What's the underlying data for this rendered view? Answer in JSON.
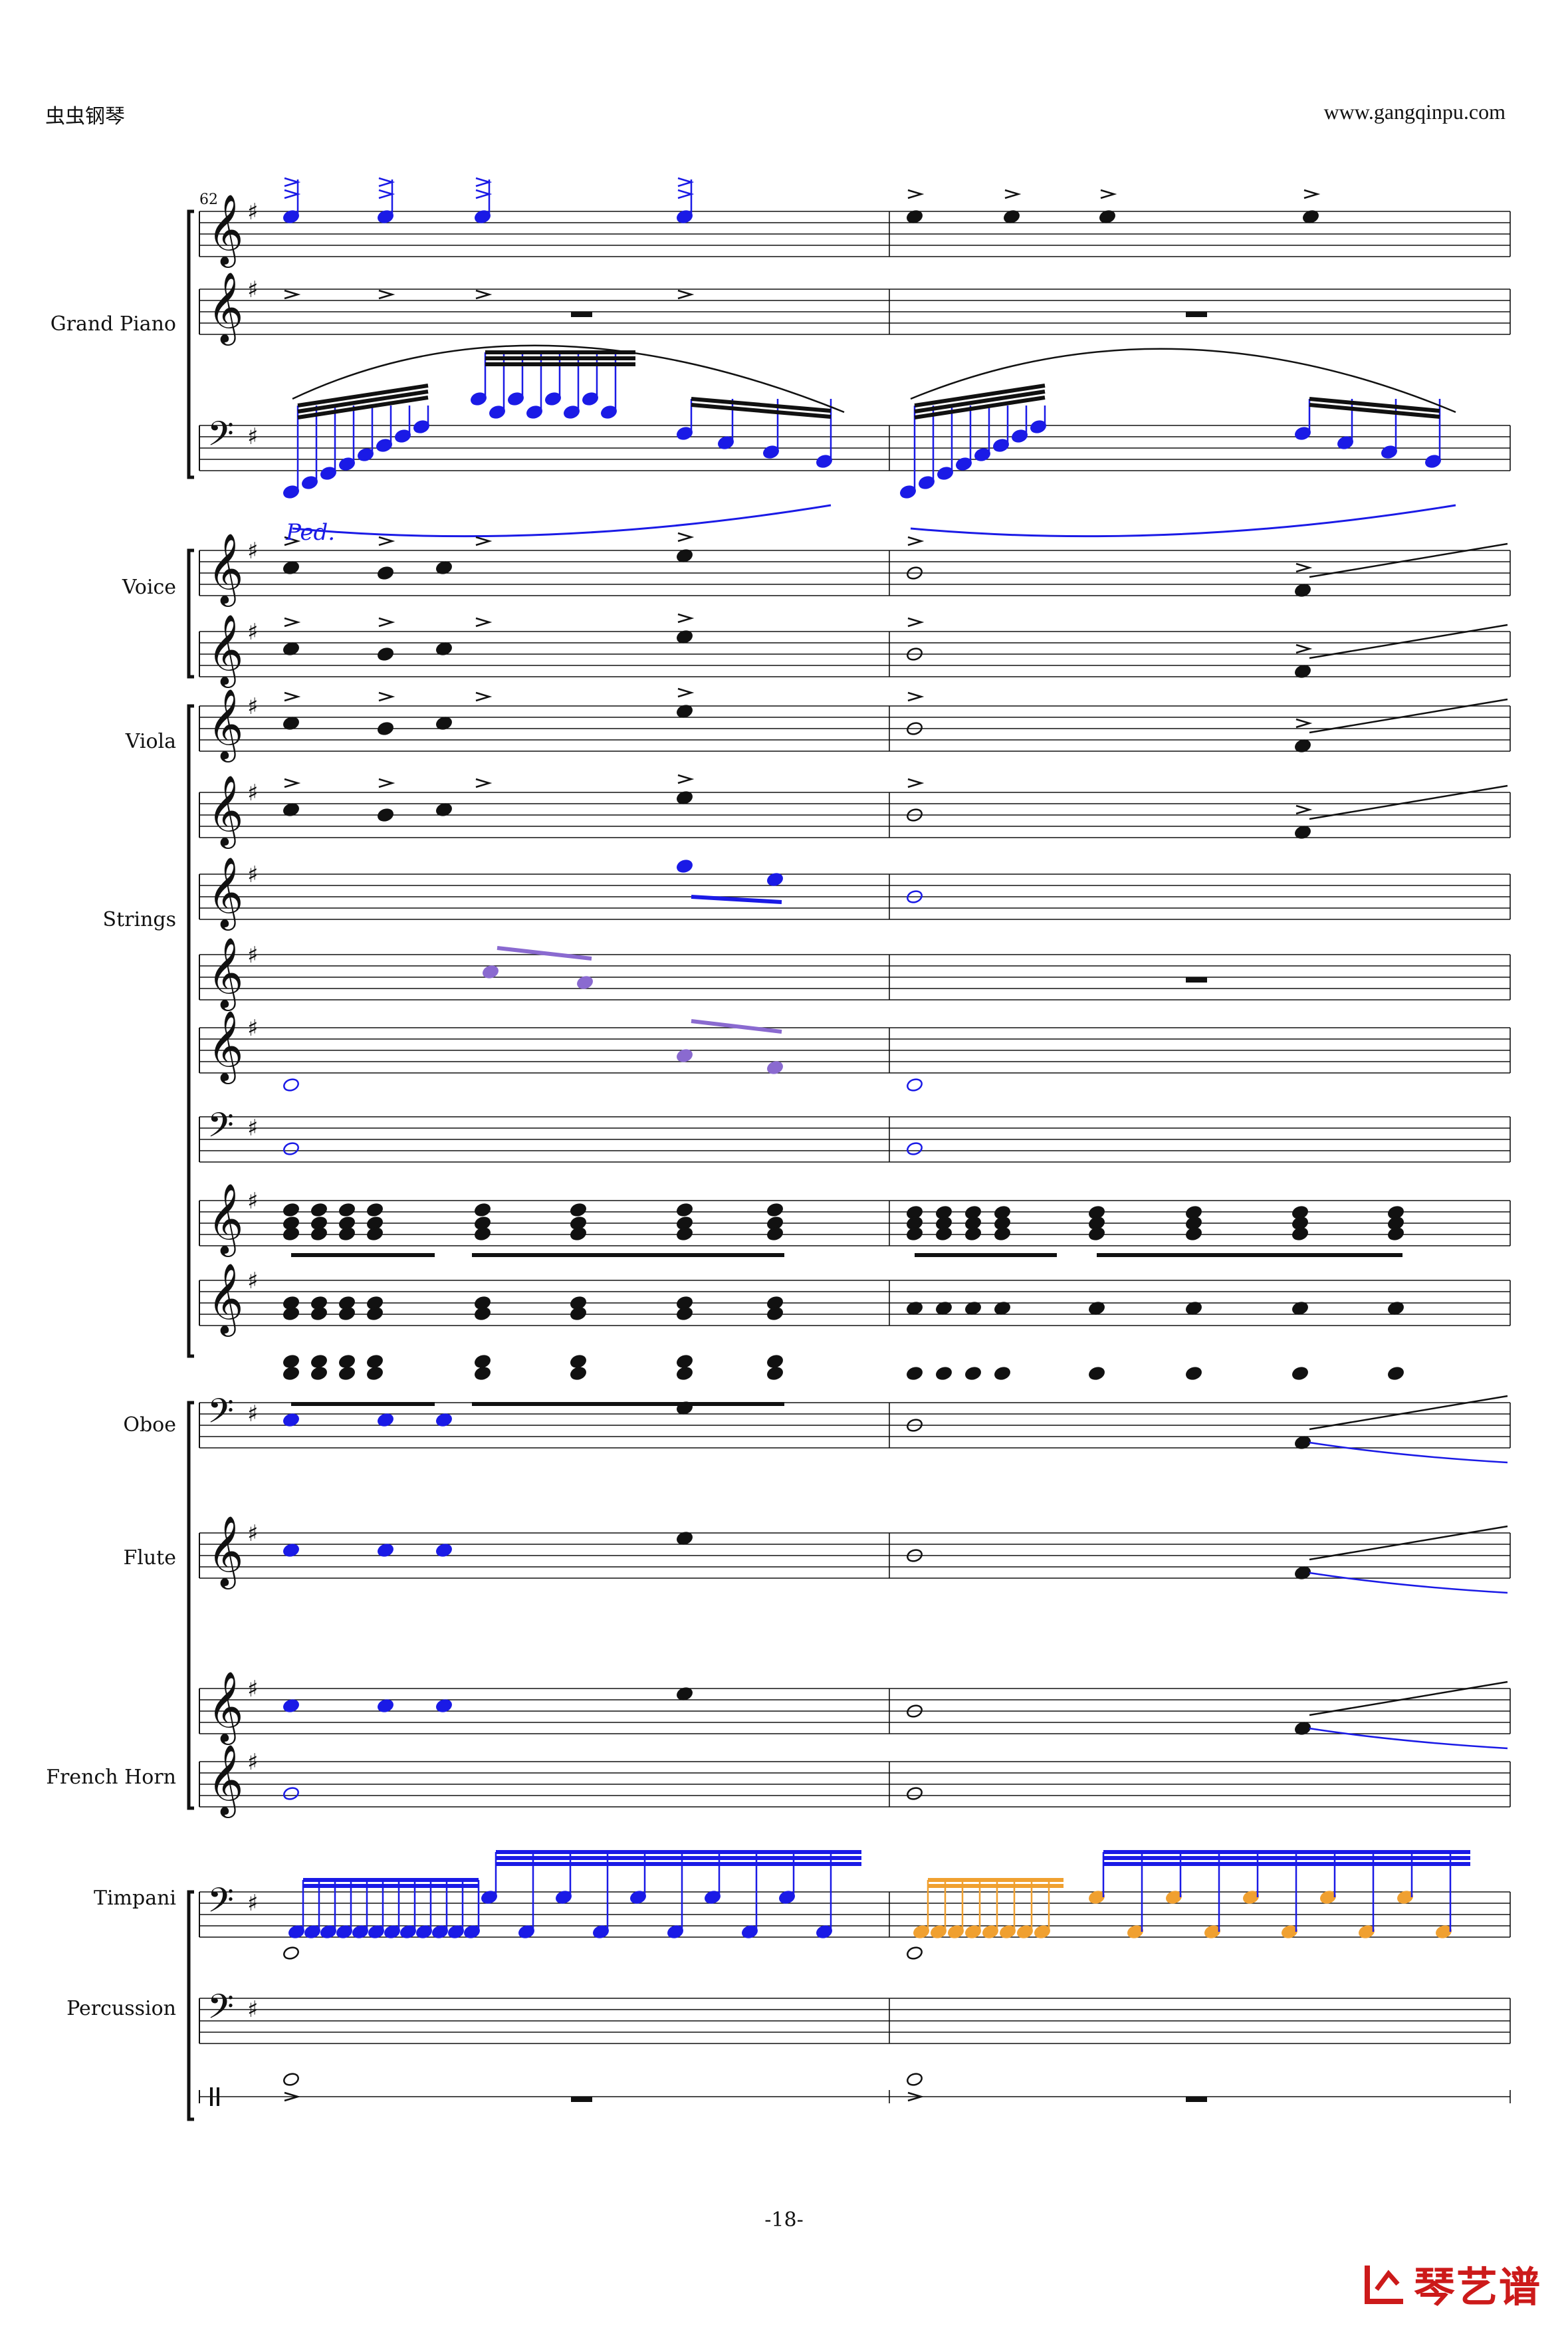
{
  "header": {
    "left": "虫虫钢琴",
    "right": "www.gangqinpu.com"
  },
  "page_number": "-18-",
  "measure_number": "62",
  "instruments": [
    "Grand Piano",
    "Voice",
    "Viola",
    "Strings",
    "Oboe",
    "Flute",
    "French Horn",
    "Timpani",
    "Percussion"
  ],
  "pedal_mark": "Ped.",
  "logo": {
    "text": "琴艺谱"
  },
  "colors": {
    "ink": "#111111",
    "blue": "#1a1ae6",
    "purple": "#8a6ad0",
    "orange": "#f0a030",
    "logo_red": "#cc1a1a"
  }
}
